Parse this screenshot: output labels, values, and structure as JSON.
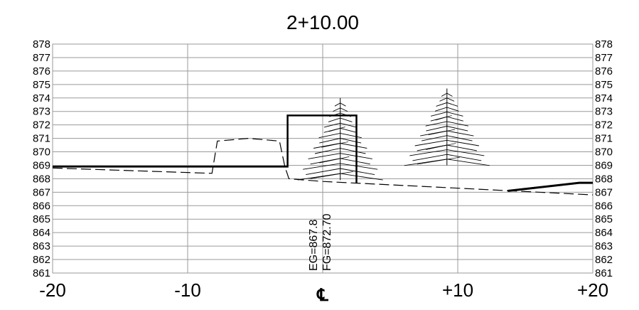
{
  "chart_data": {
    "type": "line",
    "title": "2+10.00",
    "xlim": [
      -20,
      20
    ],
    "ylim": [
      861,
      878
    ],
    "grid": true,
    "x_ticks": [
      -20,
      -10,
      0,
      10,
      20
    ],
    "x_tick_labels": [
      "-20",
      "-10",
      "℄",
      "+10",
      "+20"
    ],
    "y_ticks": [
      861,
      862,
      863,
      864,
      865,
      866,
      867,
      868,
      869,
      870,
      871,
      872,
      873,
      874,
      875,
      876,
      877,
      878
    ],
    "y_tick_labels": [
      "861",
      "862",
      "863",
      "864",
      "865",
      "866",
      "867",
      "868",
      "869",
      "870",
      "871",
      "872",
      "873",
      "874",
      "875",
      "876",
      "877",
      "878"
    ],
    "series": [
      {
        "style": "dashed",
        "points": [
          [
            -20,
            868.8
          ],
          [
            -8.2,
            868.4
          ],
          [
            -7.8,
            870.8
          ],
          [
            -5.5,
            871.0
          ],
          [
            -3.2,
            870.8
          ],
          [
            -2.8,
            868.9
          ],
          [
            -2.5,
            868.0
          ],
          [
            0,
            867.8
          ],
          [
            20,
            866.8
          ]
        ]
      },
      {
        "style": "solid",
        "points": [
          [
            -20,
            868.9
          ],
          [
            -2.6,
            868.9
          ],
          [
            -2.6,
            872.7
          ],
          [
            2.5,
            872.7
          ],
          [
            2.5,
            867.7
          ]
        ]
      },
      {
        "style": "solid-thick",
        "points": [
          [
            13.7,
            867.1
          ],
          [
            19.0,
            867.7
          ],
          [
            20,
            867.7
          ]
        ]
      }
    ],
    "trees": [
      {
        "x": 1.3,
        "top": 874.0,
        "bottom": 867.9
      },
      {
        "x": 9.2,
        "top": 874.7,
        "bottom": 869.0
      }
    ],
    "annotations": [
      {
        "x": 0,
        "text": "EG=867.8"
      },
      {
        "x": 0,
        "text": "FG=872.70"
      }
    ],
    "colors": {
      "grid": "#9a9a9a",
      "line": "#000000",
      "background": "#ffffff"
    }
  }
}
